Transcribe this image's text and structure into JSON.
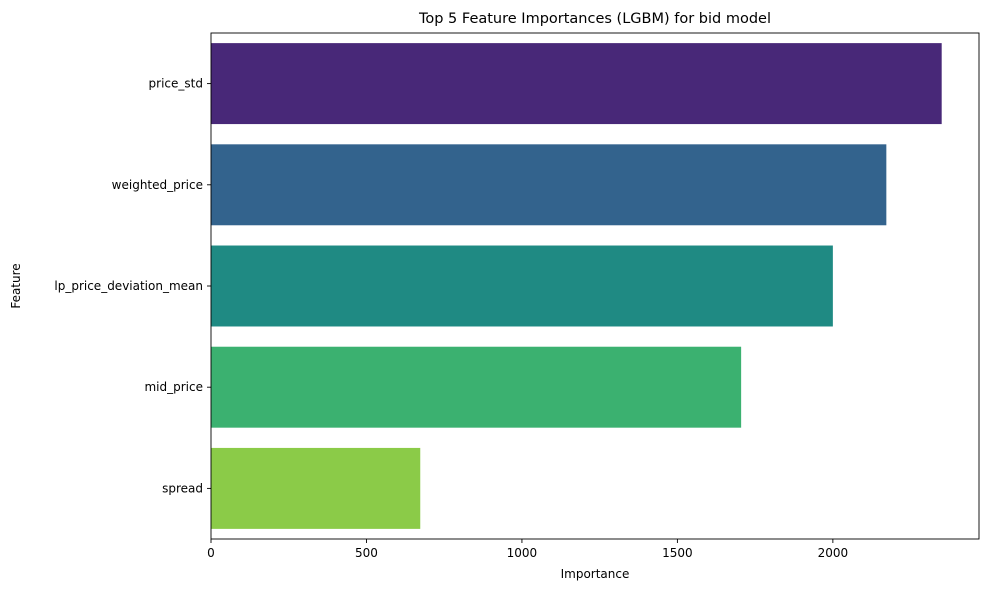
{
  "chart_data": {
    "type": "bar",
    "orientation": "horizontal",
    "title": "Top 5 Feature Importances (LGBM) for bid model",
    "xlabel": "Importance",
    "ylabel": "Feature",
    "categories": [
      "price_std",
      "weighted_price",
      "lp_price_deviation_mean",
      "mid_price",
      "spread"
    ],
    "values": [
      2350,
      2172,
      2000,
      1705,
      673
    ],
    "colors": [
      "#482878",
      "#33638d",
      "#1f8a83",
      "#3bb170",
      "#8bcb48"
    ],
    "xlim": [
      0,
      2470
    ],
    "xticks": [
      0,
      500,
      1000,
      1500,
      2000
    ],
    "grid": false,
    "legend": "none"
  }
}
